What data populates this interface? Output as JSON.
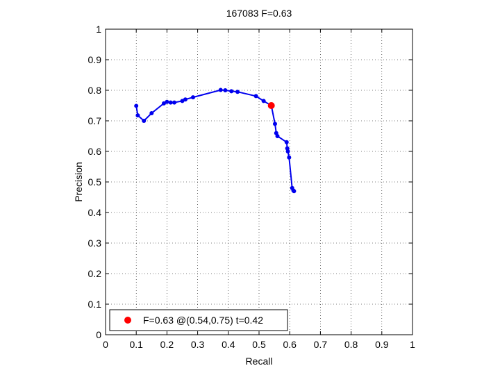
{
  "chart_data": {
    "type": "line",
    "title": "167083 F=0.63",
    "xlabel": "Recall",
    "ylabel": "Precision",
    "xlim": [
      0,
      1
    ],
    "ylim": [
      0,
      1
    ],
    "xticks": [
      "0",
      "0.1",
      "0.2",
      "0.3",
      "0.4",
      "0.5",
      "0.6",
      "0.7",
      "0.8",
      "0.9",
      "1"
    ],
    "yticks": [
      "0",
      "0.1",
      "0.2",
      "0.3",
      "0.4",
      "0.5",
      "0.6",
      "0.7",
      "0.8",
      "0.9",
      "1"
    ],
    "grid": true,
    "legend_position": "bottom-left",
    "series": [
      {
        "color": "#0000ee",
        "x": [
          0.1,
          0.105,
          0.125,
          0.15,
          0.19,
          0.2,
          0.212,
          0.224,
          0.25,
          0.26,
          0.285,
          0.375,
          0.39,
          0.41,
          0.43,
          0.49,
          0.515,
          0.54,
          0.552,
          0.556,
          0.56,
          0.59,
          0.592,
          0.594,
          0.598,
          0.608,
          0.612,
          0.614
        ],
        "y": [
          0.749,
          0.718,
          0.7,
          0.725,
          0.757,
          0.762,
          0.76,
          0.76,
          0.765,
          0.77,
          0.777,
          0.801,
          0.8,
          0.797,
          0.795,
          0.781,
          0.765,
          0.75,
          0.69,
          0.66,
          0.65,
          0.63,
          0.61,
          0.6,
          0.58,
          0.48,
          0.472,
          0.47
        ]
      }
    ],
    "highlight": {
      "x": 0.54,
      "y": 0.75,
      "color": "#ff0000"
    },
    "legend_text": "F=0.63 @(0.54,0.75) t=0.42"
  }
}
